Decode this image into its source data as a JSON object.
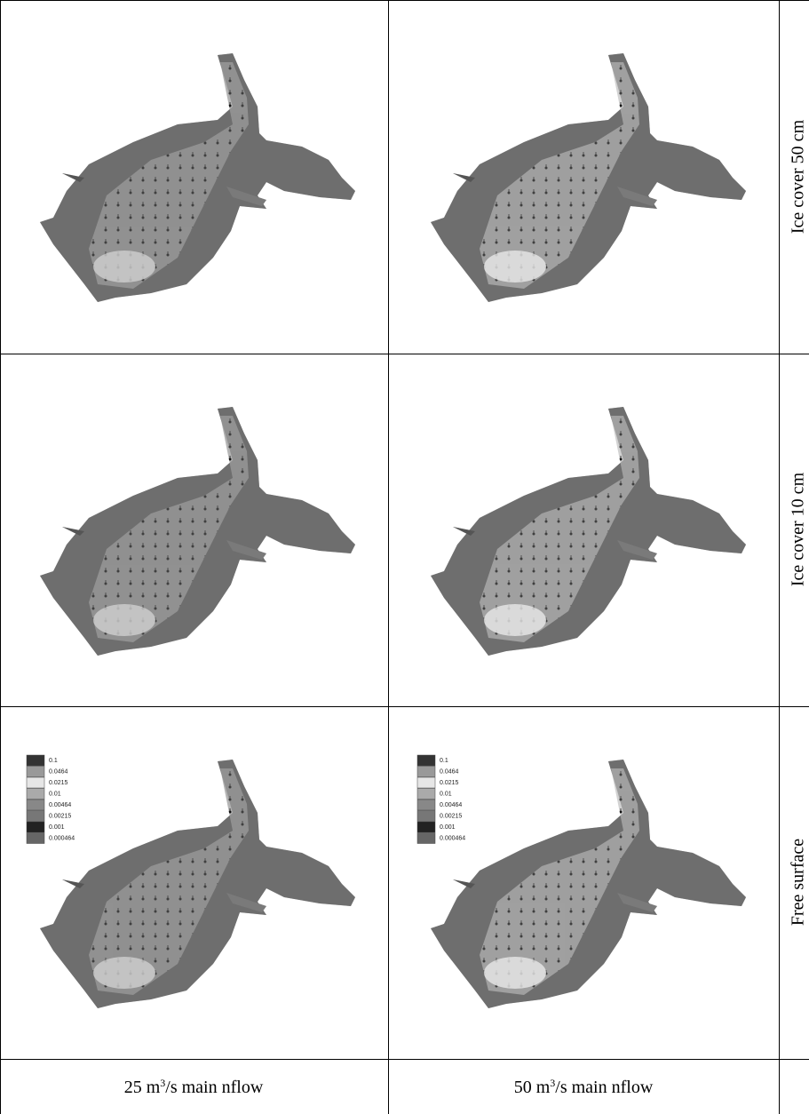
{
  "rows": [
    {
      "label": "Ice cover 50 cm"
    },
    {
      "label": "Ice cover 10 cm"
    },
    {
      "label": "Free surface"
    }
  ],
  "columns": [
    {
      "label": {
        "before": "25 m",
        "sup": "3",
        "after": "/s main nflow"
      }
    },
    {
      "label": {
        "before": "50 m",
        "sup": "3",
        "after": "/s main nflow"
      }
    }
  ],
  "legend": [
    "0.1",
    "0.0464",
    "0.0215",
    "0.01",
    "0.00464",
    "0.00215",
    "0.001",
    "0.000464"
  ]
}
